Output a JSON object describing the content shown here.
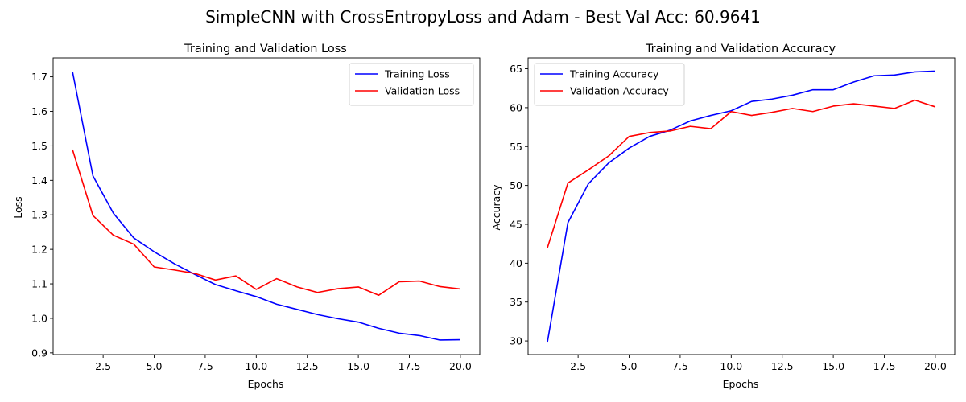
{
  "figure": {
    "suptitle": "SimpleCNN with CrossEntropyLoss and Adam - Best Val Acc: 60.9641"
  },
  "chart_data": [
    {
      "type": "line",
      "title": "Training and Validation Loss",
      "xlabel": "Epochs",
      "ylabel": "Loss",
      "xlim": [
        0.05,
        20.95
      ],
      "ylim": [
        0.895,
        1.755
      ],
      "xticks": [
        2.5,
        5.0,
        7.5,
        10.0,
        12.5,
        15.0,
        17.5,
        20.0
      ],
      "xtick_labels": [
        "2.5",
        "5.0",
        "7.5",
        "10.0",
        "12.5",
        "15.0",
        "17.5",
        "20.0"
      ],
      "yticks": [
        0.9,
        1.0,
        1.1,
        1.2,
        1.3,
        1.4,
        1.5,
        1.6,
        1.7
      ],
      "ytick_labels": [
        "0.9",
        "1.0",
        "1.1",
        "1.2",
        "1.3",
        "1.4",
        "1.5",
        "1.6",
        "1.7"
      ],
      "grid": false,
      "legend": "top-right",
      "x": [
        1,
        2,
        3,
        4,
        5,
        6,
        7,
        8,
        9,
        10,
        11,
        12,
        13,
        14,
        15,
        16,
        17,
        18,
        19,
        20
      ],
      "series": [
        {
          "name": "Training Loss",
          "color": "#0000ff",
          "values": [
            1.715,
            1.413,
            1.305,
            1.233,
            1.193,
            1.158,
            1.127,
            1.098,
            1.08,
            1.063,
            1.041,
            1.026,
            1.011,
            0.999,
            0.989,
            0.971,
            0.957,
            0.95,
            0.937,
            0.938
          ]
        },
        {
          "name": "Validation Loss",
          "color": "#ff0000",
          "values": [
            1.489,
            1.298,
            1.241,
            1.215,
            1.149,
            1.14,
            1.13,
            1.111,
            1.123,
            1.084,
            1.115,
            1.091,
            1.075,
            1.086,
            1.091,
            1.067,
            1.106,
            1.108,
            1.092,
            1.085
          ]
        }
      ]
    },
    {
      "type": "line",
      "title": "Training and Validation Accuracy",
      "xlabel": "Epochs",
      "ylabel": "Accuracy",
      "xlim": [
        0.05,
        20.95
      ],
      "ylim": [
        28.25,
        66.4
      ],
      "xticks": [
        2.5,
        5.0,
        7.5,
        10.0,
        12.5,
        15.0,
        17.5,
        20.0
      ],
      "xtick_labels": [
        "2.5",
        "5.0",
        "7.5",
        "10.0",
        "12.5",
        "15.0",
        "17.5",
        "20.0"
      ],
      "yticks": [
        30,
        35,
        40,
        45,
        50,
        55,
        60,
        65
      ],
      "ytick_labels": [
        "30",
        "35",
        "40",
        "45",
        "50",
        "55",
        "60",
        "65"
      ],
      "grid": false,
      "legend": "top-left",
      "x": [
        1,
        2,
        3,
        4,
        5,
        6,
        7,
        8,
        9,
        10,
        11,
        12,
        13,
        14,
        15,
        16,
        17,
        18,
        19,
        20
      ],
      "series": [
        {
          "name": "Training Accuracy",
          "color": "#0000ff",
          "values": [
            29.9,
            45.2,
            50.2,
            52.9,
            54.8,
            56.3,
            57.1,
            58.3,
            59.0,
            59.6,
            60.8,
            61.1,
            61.6,
            62.3,
            62.3,
            63.3,
            64.1,
            64.2,
            64.6,
            64.7
          ]
        },
        {
          "name": "Validation Accuracy",
          "color": "#ff0000",
          "values": [
            42.0,
            50.3,
            52.0,
            53.8,
            56.3,
            56.8,
            57.0,
            57.6,
            57.3,
            59.5,
            59.0,
            59.4,
            59.9,
            59.5,
            60.2,
            60.5,
            60.2,
            59.9,
            60.96,
            60.1
          ]
        }
      ]
    }
  ]
}
